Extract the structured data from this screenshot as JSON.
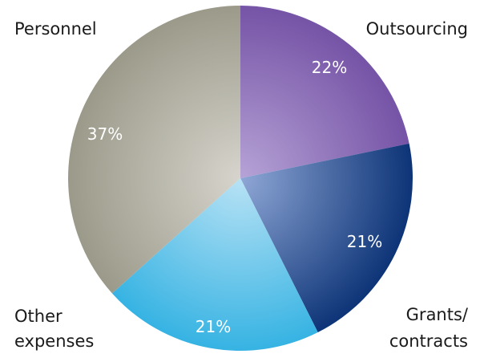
{
  "chart_data": {
    "type": "pie",
    "slices": [
      {
        "label": "Outsourcing",
        "label_lines": [
          "Outsourcing"
        ],
        "value": 22,
        "value_label": "22%",
        "color_inner": "#b6a3d6",
        "color_outer": "#7553a6"
      },
      {
        "label": "Grants/ contracts",
        "label_lines": [
          "Grants/",
          "contracts"
        ],
        "value": 21,
        "value_label": "21%",
        "color_inner": "#8fa7d6",
        "color_outer": "#0d3477"
      },
      {
        "label": "Other expenses",
        "label_lines": [
          "Other",
          "expenses"
        ],
        "value": 21,
        "value_label": "21%",
        "color_inner": "#b8e2f5",
        "color_outer": "#36b3e3"
      },
      {
        "label": "Personnel",
        "label_lines": [
          "Personnel"
        ],
        "value": 37,
        "value_label": "37%",
        "color_inner": "#d6d4cc",
        "color_outer": "#9b9a8a"
      }
    ],
    "start_angle": "12 o'clock",
    "direction": "clockwise",
    "legend": "none"
  }
}
